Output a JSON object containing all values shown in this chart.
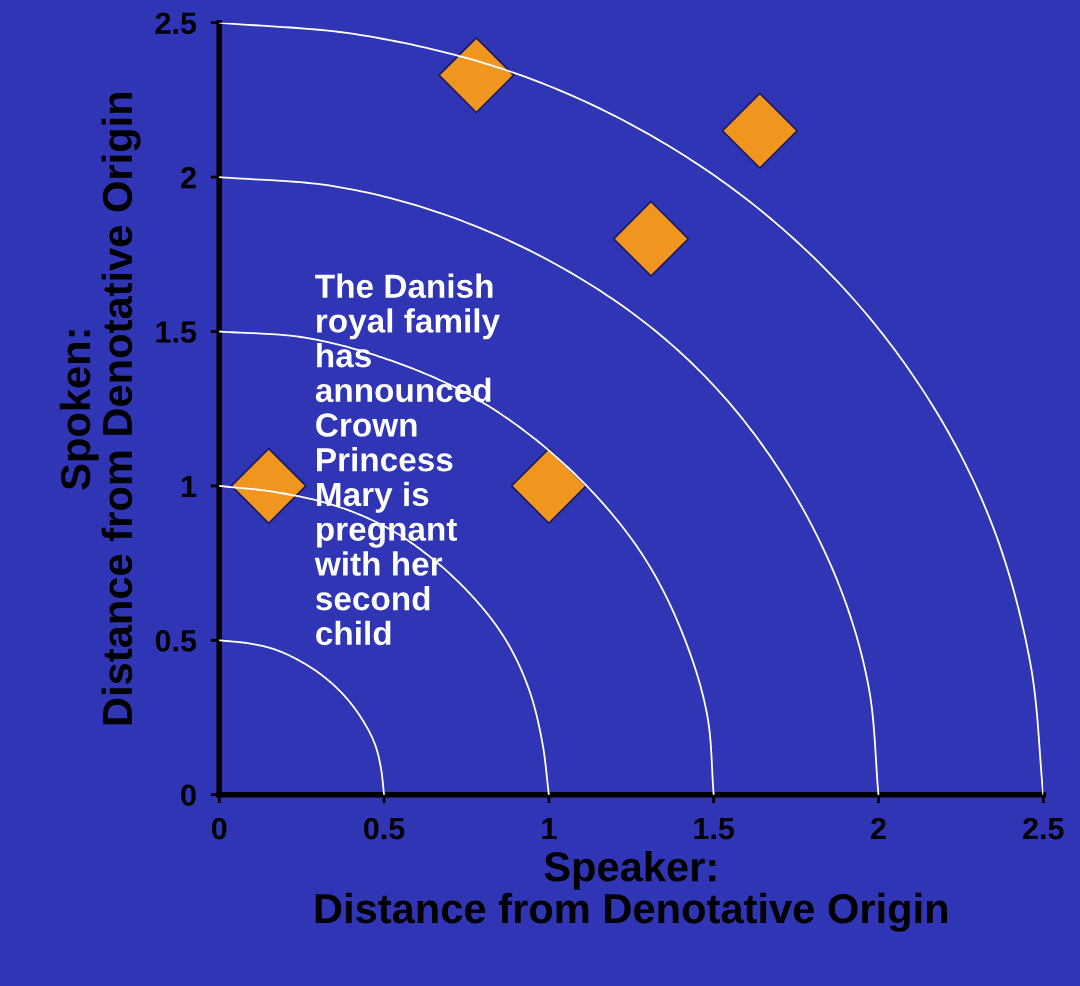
{
  "chart_data": {
    "type": "scatter",
    "xlabel": "Speaker:\nDistance from Denotative Origin",
    "ylabel": "Spoken:\nDistance from Denotative Origin",
    "xlim": [
      0,
      2.5
    ],
    "ylim": [
      0,
      2.5
    ],
    "xticks": [
      0,
      0.5,
      1,
      1.5,
      2,
      2.5
    ],
    "yticks": [
      0,
      0.5,
      1,
      1.5,
      2,
      2.5
    ],
    "grid": false,
    "legend": false,
    "annotations": [
      "The Danish\nroyal family\nhas\nannounced\nCrown\nPrincess\nMary is\npregnant\nwith her\nsecond\nchild"
    ],
    "series": [
      {
        "color": "#f0961e",
        "marker": "diamond",
        "x": [
          0.78,
          1.64,
          1.31,
          0.15,
          1.0
        ],
        "values": [
          2.33,
          2.15,
          1.8,
          1.0,
          1.0
        ]
      },
      {
        "type": "line",
        "color": "#ffffff",
        "marker": "none",
        "x": [
          0.5,
          0.49,
          0.47,
          0.43,
          0.38,
          0.32,
          0.25,
          0.17,
          0.09,
          0
        ],
        "values": [
          0,
          0.09,
          0.17,
          0.25,
          0.32,
          0.38,
          0.43,
          0.47,
          0.49,
          0.5
        ]
      },
      {
        "type": "line",
        "color": "#ffffff",
        "marker": "none",
        "x": [
          1,
          0.98,
          0.94,
          0.87,
          0.77,
          0.64,
          0.5,
          0.34,
          0.17,
          0
        ],
        "values": [
          0,
          0.17,
          0.34,
          0.5,
          0.64,
          0.77,
          0.87,
          0.94,
          0.98,
          1
        ]
      },
      {
        "type": "line",
        "color": "#ffffff",
        "marker": "none",
        "x": [
          1.5,
          1.48,
          1.41,
          1.3,
          1.15,
          0.96,
          0.75,
          0.51,
          0.26,
          0
        ],
        "values": [
          0,
          0.26,
          0.51,
          0.75,
          0.96,
          1.15,
          1.3,
          1.41,
          1.48,
          1.5
        ]
      },
      {
        "type": "line",
        "color": "#ffffff",
        "marker": "none",
        "x": [
          2,
          1.97,
          1.88,
          1.73,
          1.53,
          1.29,
          1,
          0.68,
          0.35,
          0
        ],
        "values": [
          0,
          0.35,
          0.68,
          1,
          1.29,
          1.53,
          1.73,
          1.88,
          1.97,
          2
        ]
      },
      {
        "type": "line",
        "color": "#ffffff",
        "marker": "none",
        "x": [
          2.5,
          2.46,
          2.35,
          2.17,
          1.92,
          1.61,
          1.25,
          0.86,
          0.43,
          0
        ],
        "values": [
          0,
          0.43,
          0.86,
          1.25,
          1.61,
          1.92,
          2.17,
          2.35,
          2.46,
          2.5
        ]
      }
    ]
  }
}
